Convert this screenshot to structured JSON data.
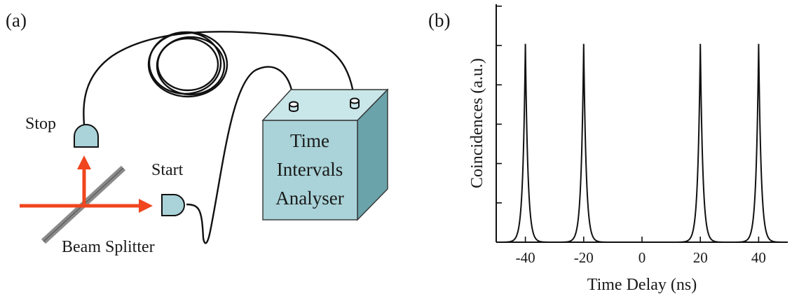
{
  "panel_a": {
    "label": "(a)",
    "stop_label": "Stop",
    "start_label": "Start",
    "beam_splitter_label": "Beam Splitter",
    "box_lines": [
      "Time",
      "Intervals",
      "Analyser"
    ],
    "colors": {
      "box_front": "#a9d3d8",
      "box_top": "#c9e6e9",
      "box_side": "#6aa3aa",
      "detector": "#a9d3d8",
      "beam": "#f0451e",
      "splitter": "#8a8a8a"
    }
  },
  "panel_b": {
    "label": "(b)"
  },
  "chart_data": {
    "type": "line",
    "title": "",
    "xlabel": "Time Delay (ns)",
    "ylabel": "Coincidences (a.u.)",
    "xlim": [
      -50,
      50
    ],
    "ylim": [
      0,
      1.2
    ],
    "xticks": [
      -40,
      -20,
      0,
      20,
      40
    ],
    "xtick_labels": [
      "-40",
      "-20",
      "0",
      "20",
      "40"
    ],
    "ytick_count": 6,
    "grid": false,
    "series": [
      {
        "peaks_at": [
          -40,
          -20,
          20,
          40
        ],
        "peak_height": 1.0,
        "peak_halfwidth": 0.9
      }
    ]
  }
}
